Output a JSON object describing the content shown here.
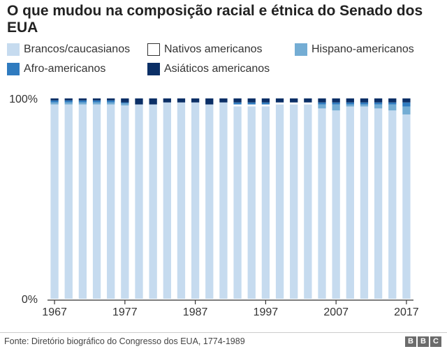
{
  "title": "O que mudou na composição racial e étnica do Senado dos EUA",
  "source": "Fonte: Diretório biográfico do Congresso dos EUA, 1774-1989",
  "logo": [
    "B",
    "B",
    "C"
  ],
  "chart_data": {
    "type": "bar",
    "stacked": true,
    "legend_position": "top",
    "grid": false,
    "ylim": [
      0,
      100
    ],
    "y_ticks": [
      "100%",
      "0%"
    ],
    "x_ticks": [
      "1967",
      "1977",
      "1987",
      "1997",
      "2007",
      "2017"
    ],
    "categories": [
      "1967",
      "1969",
      "1971",
      "1973",
      "1975",
      "1977",
      "1979",
      "1981",
      "1983",
      "1985",
      "1987",
      "1989",
      "1991",
      "1993",
      "1995",
      "1997",
      "1999",
      "2001",
      "2003",
      "2005",
      "2007",
      "2009",
      "2011",
      "2013",
      "2015",
      "2017"
    ],
    "series": [
      {
        "name": "Brancos/caucasianos",
        "color": "#c6dbef",
        "values": [
          97,
          97,
          97,
          97,
          97,
          96.5,
          97,
          97,
          98,
          98,
          98,
          97,
          98,
          96,
          96,
          96,
          97,
          97,
          97,
          95,
          94,
          96,
          96,
          95,
          94,
          92
        ]
      },
      {
        "name": "Nativos americanos",
        "color": "#ffffff",
        "values": [
          0,
          0,
          0,
          0,
          0,
          0,
          0,
          0,
          0,
          0,
          0,
          0,
          0,
          1,
          1,
          1,
          1,
          1,
          1,
          0,
          0,
          0,
          0,
          0,
          0,
          0
        ]
      },
      {
        "name": "Hispano-americanos",
        "color": "#74add4",
        "values": [
          1,
          1,
          1,
          1,
          1,
          1,
          0,
          0,
          0,
          0,
          0,
          0,
          0,
          0,
          0,
          0,
          0,
          0,
          0,
          2,
          3,
          1,
          1,
          2,
          3,
          4
        ]
      },
      {
        "name": "Afro-americanos",
        "color": "#2f7bbf",
        "values": [
          1,
          1,
          1,
          1,
          1,
          0.5,
          0,
          0,
          0,
          0,
          0,
          0,
          0,
          1,
          1,
          1,
          0,
          0,
          0,
          1,
          1,
          1,
          1,
          1,
          1,
          2
        ]
      },
      {
        "name": "Asiáticos americanos",
        "color": "#0b2f66",
        "values": [
          1,
          1,
          1,
          1,
          1,
          2,
          3,
          3,
          2,
          2,
          2,
          3,
          2,
          2,
          2,
          2,
          2,
          2,
          2,
          2,
          2,
          2,
          2,
          2,
          2,
          2
        ]
      }
    ]
  }
}
